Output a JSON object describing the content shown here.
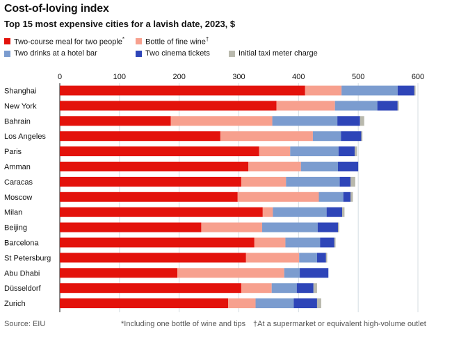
{
  "title": "Cost-of-loving index",
  "subtitle": "Top 15 most expensive cities for a lavish date, 2023, $",
  "colors": {
    "meal": "#e3120b",
    "wine": "#f7a08e",
    "drinks": "#7b9ccf",
    "cinema": "#2e45b8",
    "taxi": "#b9b9ad"
  },
  "legend": [
    {
      "key": "meal",
      "label": "Two-course meal for two people",
      "mark": "*"
    },
    {
      "key": "wine",
      "label": "Bottle of fine wine",
      "mark": "†"
    },
    {
      "key": "drinks",
      "label": "Two drinks at a hotel bar",
      "mark": ""
    },
    {
      "key": "cinema",
      "label": "Two cinema tickets",
      "mark": ""
    },
    {
      "key": "taxi",
      "label": "Initial taxi meter charge",
      "mark": ""
    }
  ],
  "footer": {
    "source": "Source: EIU",
    "note1": "*Including one bottle of wine and tips",
    "note2": "†At a supermarket or equivalent high-volume outlet"
  },
  "chart_data": {
    "type": "bar",
    "orientation": "horizontal",
    "stacked": true,
    "title": "Cost-of-loving index",
    "subtitle": "Top 15 most expensive cities for a lavish date, 2023, $",
    "xlim": [
      0,
      600
    ],
    "xticks": [
      0,
      100,
      200,
      300,
      400,
      500,
      600
    ],
    "grid": true,
    "legend_position": "top",
    "categories": [
      "Shanghai",
      "New York",
      "Bahrain",
      "Los Angeles",
      "Paris",
      "Amman",
      "Caracas",
      "Moscow",
      "Milan",
      "Beijing",
      "Barcelona",
      "St Petersburg",
      "Abu Dhabi",
      "Düsseldorf",
      "Zurich"
    ],
    "series": [
      {
        "key": "meal",
        "name": "Two-course meal for two people",
        "values": [
          411,
          363,
          186,
          269,
          334,
          316,
          304,
          298,
          340,
          237,
          326,
          312,
          197,
          304,
          282
        ]
      },
      {
        "key": "wine",
        "name": "Bottle of fine wine",
        "values": [
          61,
          98,
          170,
          155,
          52,
          88,
          75,
          136,
          17,
          102,
          52,
          89,
          179,
          51,
          46
        ]
      },
      {
        "key": "drinks",
        "name": "Two drinks at a hotel bar",
        "values": [
          94,
          71,
          109,
          47,
          81,
          62,
          90,
          41,
          90,
          93,
          58,
          30,
          26,
          42,
          64
        ]
      },
      {
        "key": "cinema",
        "name": "Two cinema tickets",
        "values": [
          28,
          34,
          38,
          34,
          27,
          34,
          18,
          12,
          26,
          34,
          24,
          15,
          48,
          28,
          39
        ]
      },
      {
        "key": "taxi",
        "name": "Initial taxi meter charge",
        "values": [
          2,
          2,
          7,
          2,
          4,
          0,
          8,
          4,
          4,
          2,
          2,
          2,
          0,
          6,
          7
        ]
      }
    ]
  }
}
